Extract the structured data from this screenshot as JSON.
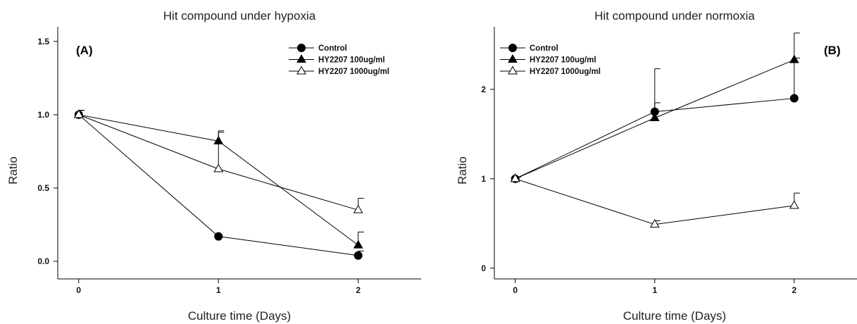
{
  "chart_data": [
    {
      "type": "line",
      "title": "Hit compound under hypoxia",
      "panel_label": "(A)",
      "xlabel": "Culture time (Days)",
      "ylabel": "Ratio",
      "x": [
        0,
        1,
        2
      ],
      "x_ticks": [
        "0",
        "1",
        "2"
      ],
      "xlim": [
        -0.15,
        2.45
      ],
      "y_ticks": [
        "0.0",
        "0.5",
        "1.0",
        "1.5"
      ],
      "ylim": [
        -0.12,
        1.6
      ],
      "legend_position": "top-right",
      "series": [
        {
          "name": "Control",
          "marker": "filled-circle",
          "values": [
            1.0,
            0.17,
            0.04
          ],
          "errors": [
            0.03,
            0.0,
            0.03
          ]
        },
        {
          "name": "HY2207 100ug/ml",
          "marker": "filled-triangle",
          "values": [
            1.0,
            0.82,
            0.11
          ],
          "errors": [
            0.03,
            0.07,
            0.09
          ]
        },
        {
          "name": "HY2207 1000ug/ml",
          "marker": "open-triangle",
          "values": [
            1.0,
            0.63,
            0.35
          ],
          "errors": [
            0.03,
            0.25,
            0.08
          ]
        }
      ]
    },
    {
      "type": "line",
      "title": "Hit compound under normoxia",
      "panel_label": "(B)",
      "xlabel": "Culture time (Days)",
      "ylabel": "Ratio",
      "x": [
        0,
        1,
        2
      ],
      "x_ticks": [
        "0",
        "1",
        "2"
      ],
      "xlim": [
        -0.15,
        2.45
      ],
      "y_ticks": [
        "0",
        "1",
        "2"
      ],
      "ylim": [
        -0.12,
        2.7
      ],
      "legend_position": "top-left",
      "series": [
        {
          "name": "Control",
          "marker": "filled-circle",
          "values": [
            1.0,
            1.75,
            1.9
          ],
          "errors": [
            0.02,
            0.1,
            0.45
          ]
        },
        {
          "name": "HY2207 100ug/ml",
          "marker": "filled-triangle",
          "values": [
            1.0,
            1.68,
            2.33
          ],
          "errors": [
            0.02,
            0.55,
            0.3
          ]
        },
        {
          "name": "HY2207 1000ug/ml",
          "marker": "open-triangle",
          "values": [
            1.0,
            0.49,
            0.7
          ],
          "errors": [
            0.02,
            0.04,
            0.14
          ]
        }
      ]
    }
  ]
}
